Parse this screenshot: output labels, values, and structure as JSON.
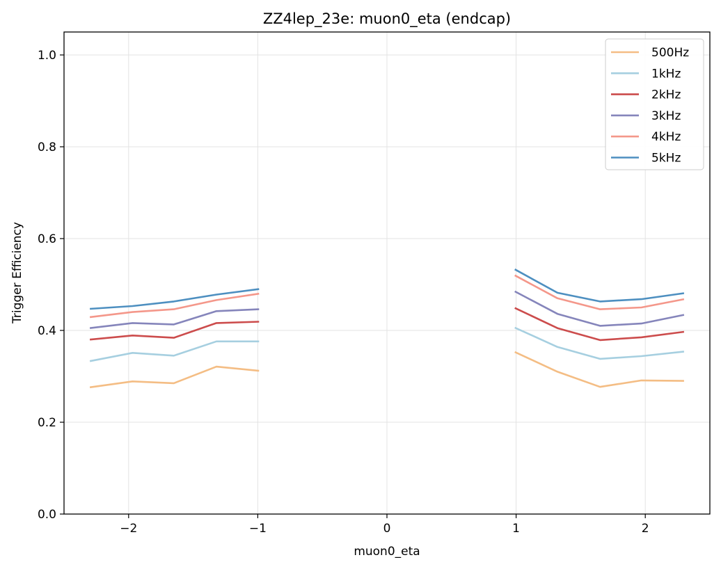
{
  "chart_data": {
    "type": "line",
    "title": "ZZ4lep_23e: muon0_eta (endcap)",
    "xlabel": "muon0_eta",
    "ylabel": "Trigger Efficiency",
    "xlim": [
      -2.5,
      2.5
    ],
    "ylim": [
      0.0,
      1.05
    ],
    "xticks": [
      -2,
      -1,
      0,
      1,
      2
    ],
    "xtick_labels": [
      "−2",
      "−1",
      "0",
      "1",
      "2"
    ],
    "yticks": [
      0.0,
      0.2,
      0.4,
      0.6,
      0.8,
      1.0
    ],
    "ytick_labels": [
      "0.0",
      "0.2",
      "0.4",
      "0.6",
      "0.8",
      "1.0"
    ],
    "grid": true,
    "legend_position": "top-right",
    "x_left": [
      -2.3,
      -1.97,
      -1.65,
      -1.32,
      -0.99
    ],
    "x_right": [
      0.99,
      1.32,
      1.65,
      1.97,
      2.3
    ],
    "series": [
      {
        "name": "500Hz",
        "color": "#f4bd84",
        "left": [
          0.276,
          0.289,
          0.285,
          0.321,
          0.312
        ],
        "right": [
          0.353,
          0.31,
          0.277,
          0.291,
          0.29
        ]
      },
      {
        "name": "1kHz",
        "color": "#a6cfe0",
        "left": [
          0.333,
          0.351,
          0.345,
          0.376,
          0.376
        ],
        "right": [
          0.406,
          0.364,
          0.338,
          0.344,
          0.354
        ]
      },
      {
        "name": "2kHz",
        "color": "#cc4c4c",
        "left": [
          0.38,
          0.389,
          0.384,
          0.416,
          0.419
        ],
        "right": [
          0.449,
          0.405,
          0.379,
          0.385,
          0.397
        ]
      },
      {
        "name": "3kHz",
        "color": "#8585bb",
        "left": [
          0.405,
          0.416,
          0.413,
          0.442,
          0.446
        ],
        "right": [
          0.485,
          0.436,
          0.41,
          0.415,
          0.434
        ]
      },
      {
        "name": "4kHz",
        "color": "#f4978a",
        "left": [
          0.429,
          0.44,
          0.446,
          0.466,
          0.48
        ],
        "right": [
          0.52,
          0.47,
          0.446,
          0.45,
          0.468
        ]
      },
      {
        "name": "5kHz",
        "color": "#4d8fc0",
        "left": [
          0.447,
          0.453,
          0.463,
          0.478,
          0.49
        ],
        "right": [
          0.533,
          0.482,
          0.463,
          0.468,
          0.481
        ]
      }
    ]
  }
}
